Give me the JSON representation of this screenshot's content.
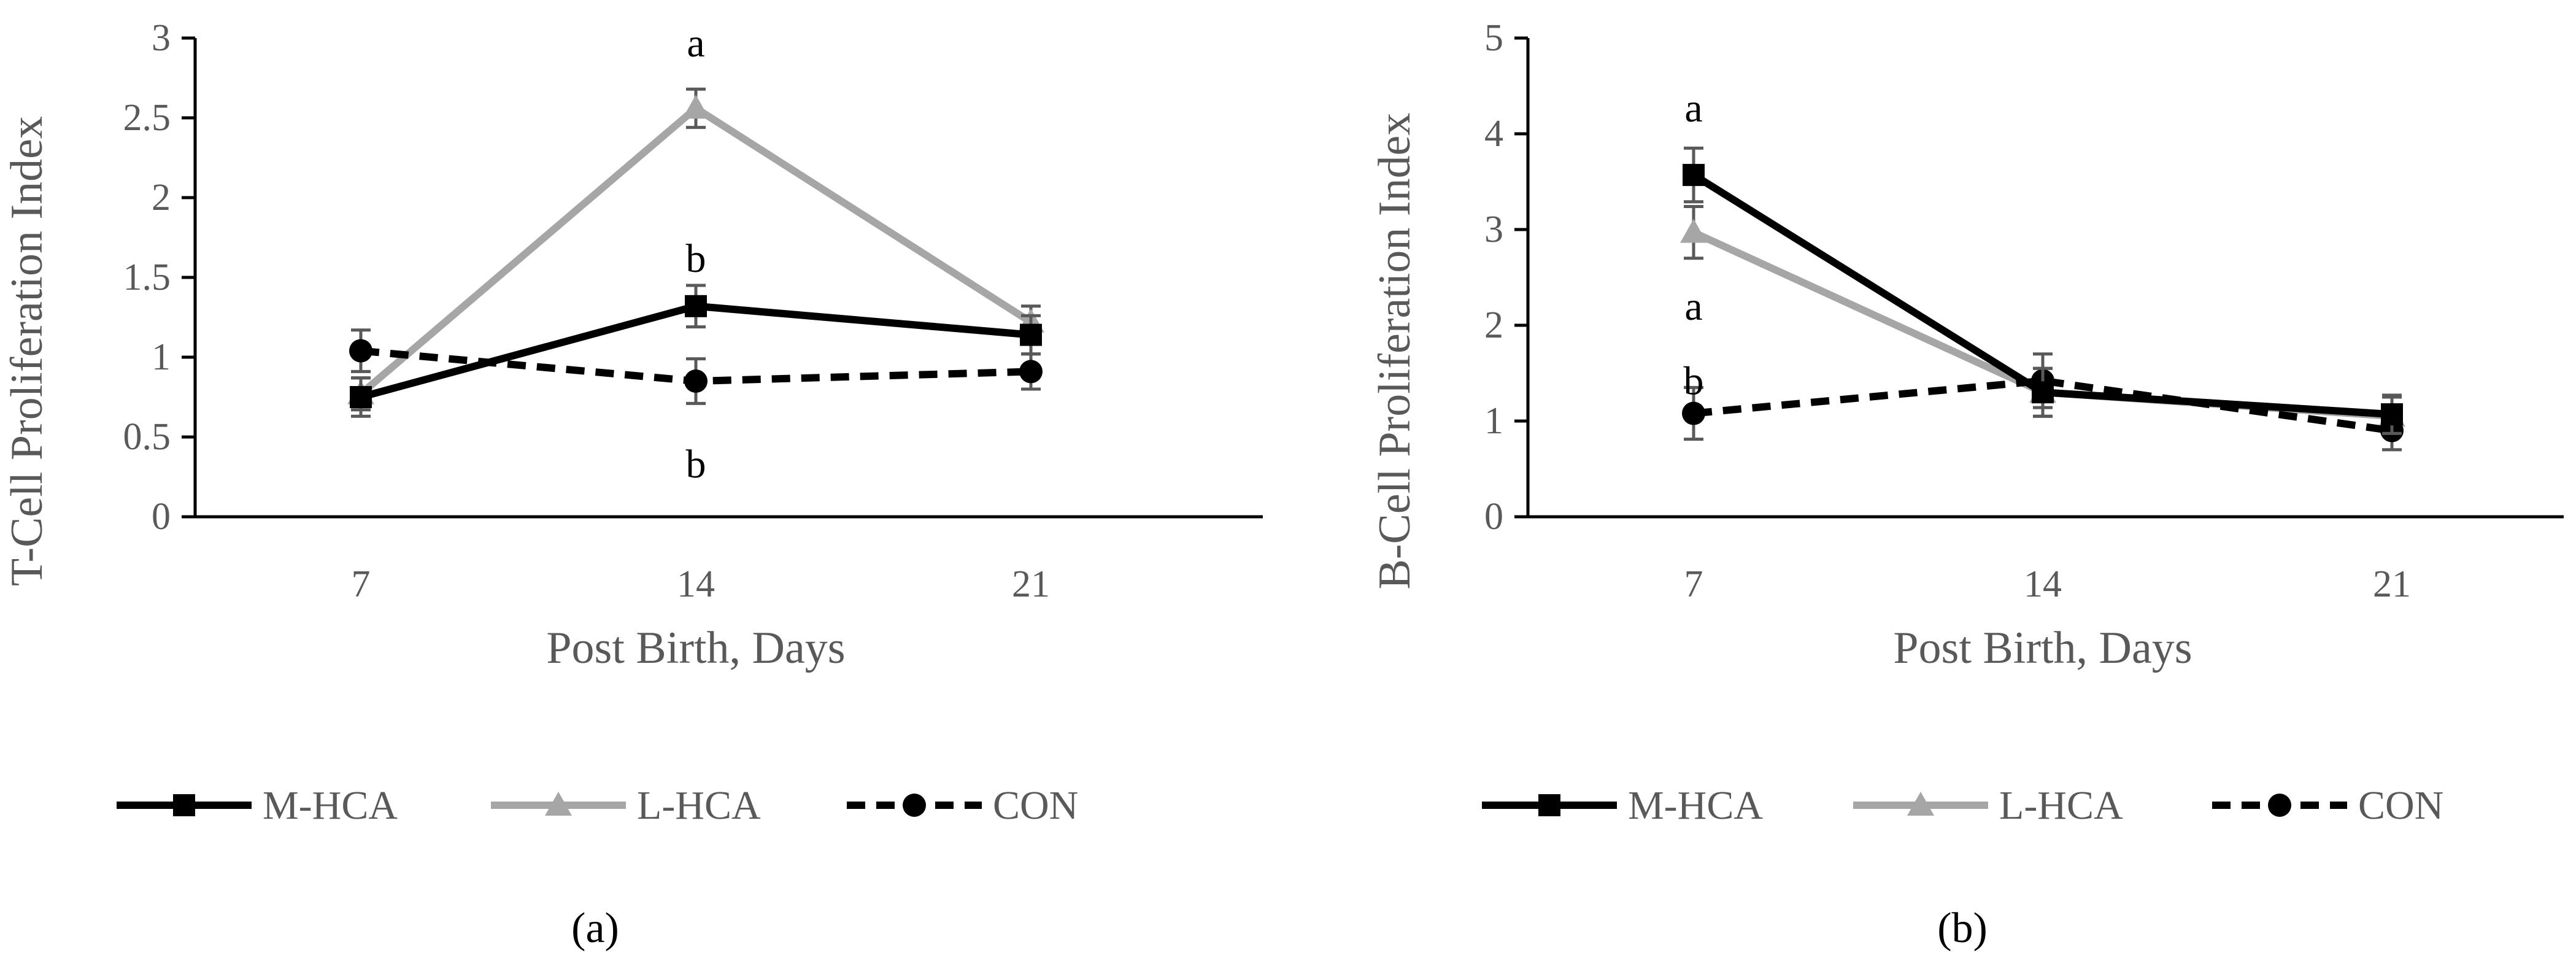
{
  "chart_data": [
    {
      "type": "line",
      "panel_label": "(a)",
      "ylabel": "T-Cell Proliferation Index",
      "xlabel": "Post Birth, Days",
      "ylim": [
        0,
        3
      ],
      "yticks": [
        "0",
        "0.5",
        "1",
        "1.5",
        "2",
        "2.5",
        "3"
      ],
      "categories": [
        "7",
        "14",
        "21"
      ],
      "series": [
        {
          "name": "M-HCA",
          "color": "#000000",
          "dash": "solid",
          "marker": "square",
          "values": [
            0.75,
            1.32,
            1.14
          ],
          "errors": [
            0.12,
            0.13,
            0.12
          ]
        },
        {
          "name": "L-HCA",
          "color": "#a6a6a6",
          "dash": "solid",
          "marker": "triangle",
          "values": [
            0.77,
            2.56,
            1.22
          ],
          "errors": [
            0.1,
            0.12,
            0.1
          ]
        },
        {
          "name": "CON",
          "color": "#000000",
          "dash": "dashed",
          "marker": "circle",
          "values": [
            1.04,
            0.85,
            0.91
          ],
          "errors": [
            0.13,
            0.14,
            0.11
          ]
        }
      ],
      "annotations": [
        {
          "text": "a",
          "x": "14",
          "y": 2.97
        },
        {
          "text": "b",
          "x": "14",
          "y": 1.62
        },
        {
          "text": "b",
          "x": "14",
          "y": 0.33
        }
      ]
    },
    {
      "type": "line",
      "panel_label": "(b)",
      "ylabel": "B-Cell Proliferation Index",
      "xlabel": "Post Birth, Days",
      "ylim": [
        0,
        5
      ],
      "yticks": [
        "0",
        "1",
        "2",
        "3",
        "4",
        "5"
      ],
      "categories": [
        "7",
        "14",
        "21"
      ],
      "series": [
        {
          "name": "M-HCA",
          "color": "#000000",
          "dash": "solid",
          "marker": "square",
          "values": [
            3.57,
            1.3,
            1.07
          ],
          "errors": [
            0.28,
            0.25,
            0.2
          ]
        },
        {
          "name": "L-HCA",
          "color": "#a6a6a6",
          "dash": "solid",
          "marker": "triangle",
          "values": [
            2.97,
            1.3,
            1.05
          ],
          "errors": [
            0.27,
            0.25,
            0.2
          ]
        },
        {
          "name": "CON",
          "color": "#000000",
          "dash": "dashed",
          "marker": "circle",
          "values": [
            1.08,
            1.42,
            0.9
          ],
          "errors": [
            0.27,
            0.28,
            0.2
          ]
        }
      ],
      "annotations": [
        {
          "text": "a",
          "x": "7",
          "y": 4.27
        },
        {
          "text": "a",
          "x": "7",
          "y": 2.2
        },
        {
          "text": "b",
          "x": "7",
          "y": 1.42
        }
      ]
    }
  ]
}
